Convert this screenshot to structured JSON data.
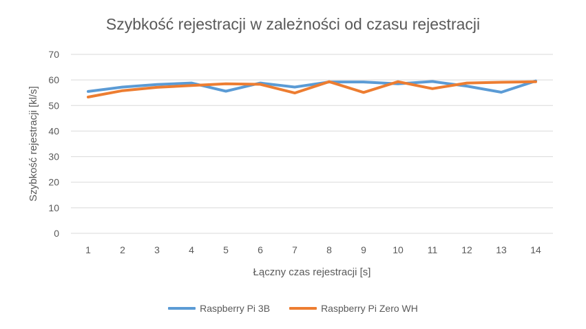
{
  "chart_data": {
    "type": "line",
    "title": "Szybkość rejestracji w zależności od czasu rejestracji",
    "xlabel": "Łączny czas rejestracji [s]",
    "ylabel": "Szybkość rejestracji [kl/s]",
    "x": [
      1,
      2,
      3,
      4,
      5,
      6,
      7,
      8,
      9,
      10,
      11,
      12,
      13,
      14
    ],
    "ylim": [
      0,
      70
    ],
    "yticks": [
      0,
      10,
      20,
      30,
      40,
      50,
      60,
      70
    ],
    "grid": true,
    "legend_position": "bottom",
    "series": [
      {
        "name": "Raspberry Pi 3B",
        "color": "#5B9BD5",
        "values": [
          55.5,
          57.2,
          58.2,
          58.8,
          55.6,
          58.8,
          57.2,
          59.2,
          59.2,
          58.5,
          59.4,
          57.6,
          55.2,
          59.6
        ]
      },
      {
        "name": "Raspberry Pi Zero WH",
        "color": "#ED7D31",
        "values": [
          53.3,
          55.8,
          57.1,
          57.8,
          58.5,
          58.3,
          54.9,
          59.3,
          55.1,
          59.3,
          56.6,
          58.8,
          59.1,
          59.3
        ]
      }
    ]
  }
}
